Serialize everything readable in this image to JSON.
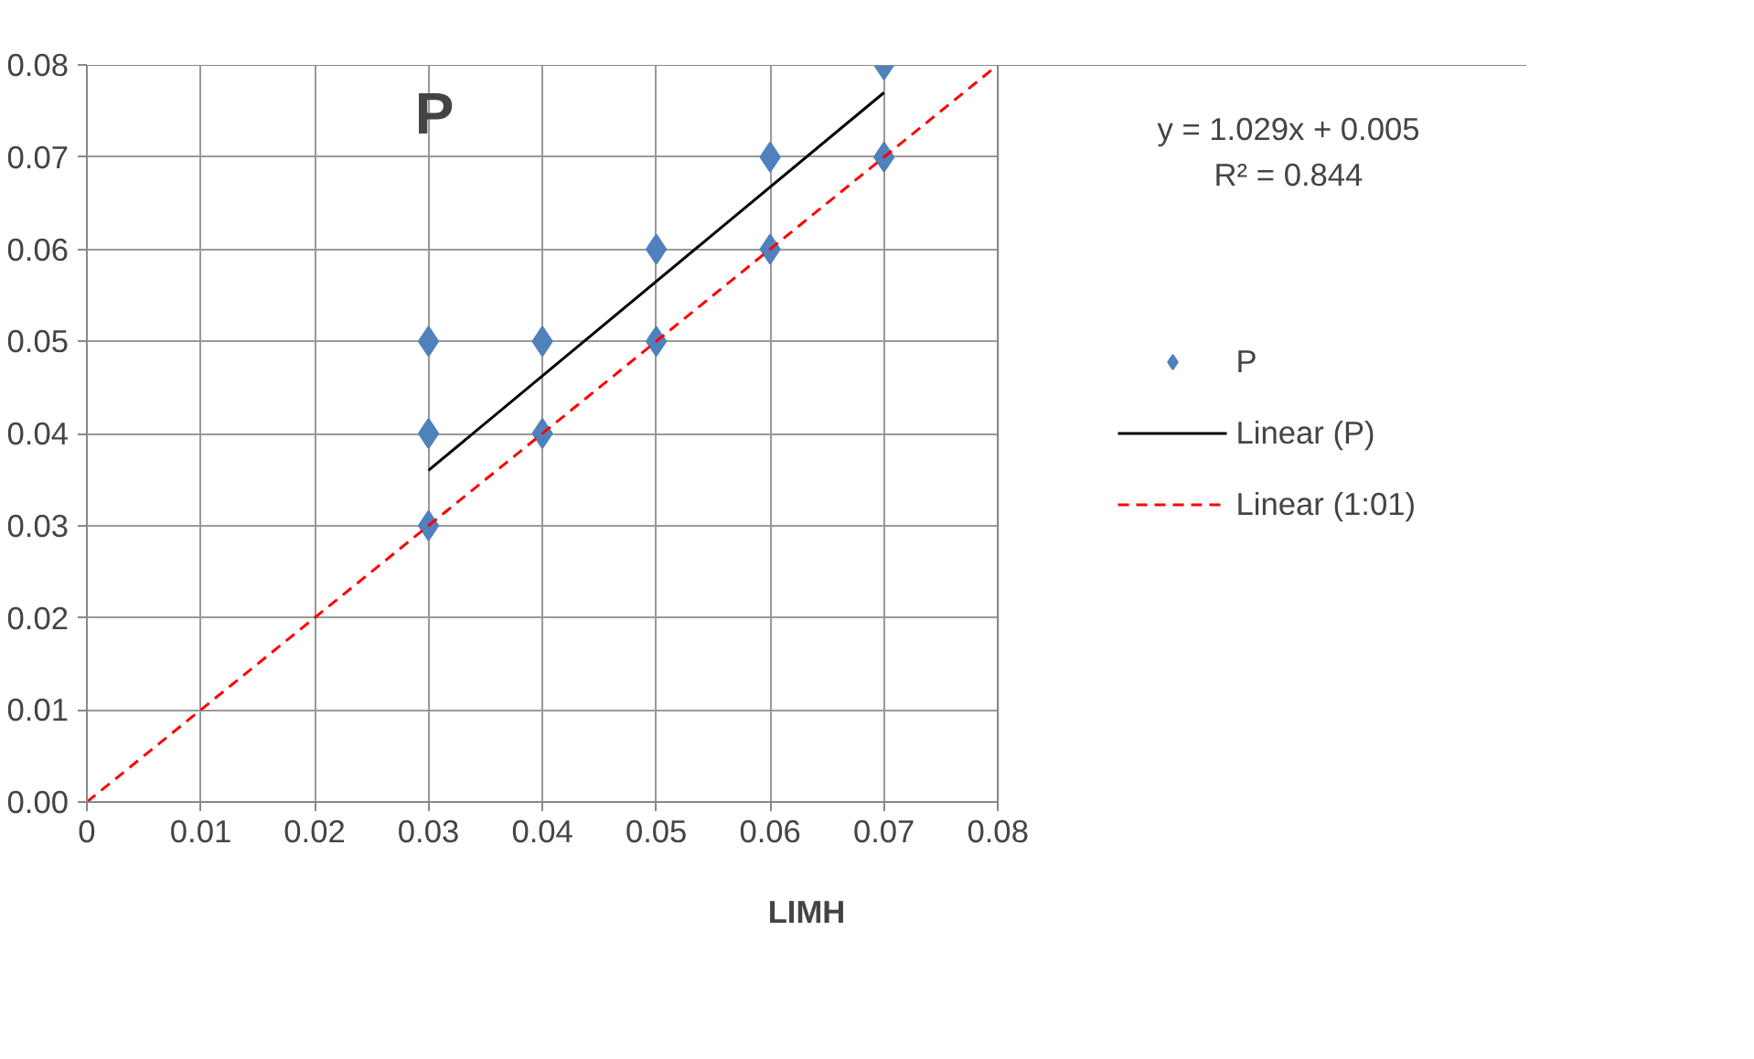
{
  "chart_data": {
    "type": "scatter",
    "title": "P",
    "xlabel": "LIMH",
    "annotations": [
      "y = 1.029x + 0.005",
      "R² = 0.844"
    ],
    "series": [
      {
        "name": "P",
        "color": "#4f81bd",
        "marker": "diamond",
        "x": [
          0.03,
          0.03,
          0.03,
          0.04,
          0.04,
          0.05,
          0.05,
          0.06,
          0.06,
          0.07,
          0.07
        ],
        "values": [
          0.03,
          0.04,
          0.05,
          0.04,
          0.05,
          0.05,
          0.06,
          0.06,
          0.07,
          0.07,
          0.08
        ]
      },
      {
        "name": "Linear (P)",
        "type": "line",
        "color": "#000000",
        "line_style": "solid",
        "x": [
          0.03,
          0.07
        ],
        "values": [
          0.036,
          0.077
        ]
      },
      {
        "name": "Linear (1:01)",
        "type": "line",
        "color": "#ff0000",
        "line_style": "dashed",
        "x": [
          0,
          0.08
        ],
        "values": [
          0,
          0.08
        ]
      }
    ],
    "xlim": [
      0,
      0.08
    ],
    "ylim": [
      0,
      0.08
    ],
    "xticks": [
      0,
      0.01,
      0.02,
      0.03,
      0.04,
      0.05,
      0.06,
      0.07,
      0.08
    ],
    "yticks": [
      {
        "value": 0,
        "label": "0.00"
      },
      {
        "value": 0.01,
        "label": "0.01"
      },
      {
        "value": 0.02,
        "label": "0.02"
      },
      {
        "value": 0.03,
        "label": "0.03"
      },
      {
        "value": 0.04,
        "label": "0.04"
      },
      {
        "value": 0.05,
        "label": "0.05"
      },
      {
        "value": 0.06,
        "label": "0.06"
      },
      {
        "value": 0.07,
        "label": "0.07"
      },
      {
        "value": 0.08,
        "label": "0.08"
      }
    ],
    "grid": true,
    "legend": "right"
  }
}
